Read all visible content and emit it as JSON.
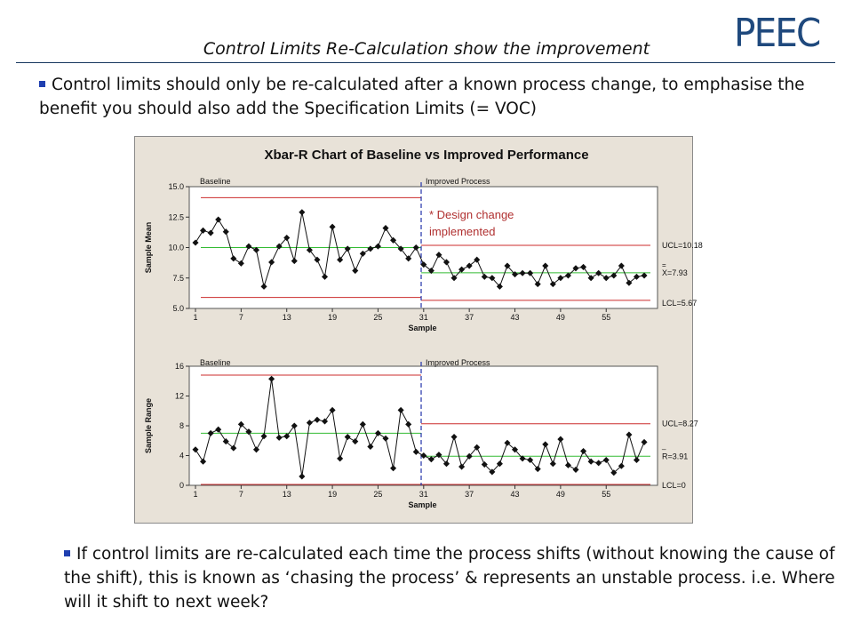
{
  "slide": {
    "title": "Control Limits Re-Calculation show the improvement",
    "logo": "PEEC",
    "bullet1": "Control limits should only be re-calculated after a known process change, to emphasise the benefit you should also add the Specification Limits (= VOC)",
    "bullet2": "If control limits are re-calculated each time the process shifts (without knowing the cause of the shift), this is known as ‘chasing the process’ & represents an unstable process. i.e. Where will it shift to next week?"
  },
  "colors": {
    "limit": "#cc2b2b",
    "center": "#33bb33",
    "shift": "#2233aa",
    "annotation": "#b03030",
    "brand": "#1f497d"
  },
  "chart_data": [
    {
      "type": "line",
      "title": "Xbar-R Chart of Baseline vs Improved Performance",
      "xlabel": "Sample",
      "ylabel": "Sample Mean",
      "ylim": [
        5.0,
        15.0
      ],
      "yticks": [
        "15.0",
        "12.5",
        "10.0",
        "7.5",
        "5.0"
      ],
      "xticks": [
        "1",
        "7",
        "13",
        "19",
        "25",
        "31",
        "37",
        "43",
        "49",
        "55"
      ],
      "stage_labels": [
        "Baseline",
        "Improved Process"
      ],
      "annotation": [
        "* Design change",
        "implemented"
      ],
      "limit_labels": {
        "ucl": "UCL=10.18",
        "center_bar": "=",
        "center": "X=7.93",
        "lcl": "LCL=5.67"
      },
      "limits": {
        "baseline": {
          "ucl": 14.1,
          "center": 10.0,
          "lcl": 5.9
        },
        "improved": {
          "ucl": 10.18,
          "center": 7.93,
          "lcl": 5.67
        }
      },
      "x": [
        1,
        2,
        3,
        4,
        5,
        6,
        7,
        8,
        9,
        10,
        11,
        12,
        13,
        14,
        15,
        16,
        17,
        18,
        19,
        20,
        21,
        22,
        23,
        24,
        25,
        26,
        27,
        28,
        29,
        30,
        31,
        32,
        33,
        34,
        35,
        36,
        37,
        38,
        39,
        40,
        41,
        42,
        43,
        44,
        45,
        46,
        47,
        48,
        49,
        50,
        51,
        52,
        53,
        54,
        55,
        56,
        57,
        58,
        59,
        60
      ],
      "values": [
        10.4,
        11.4,
        11.2,
        12.3,
        11.3,
        9.1,
        8.7,
        10.1,
        9.8,
        6.8,
        8.8,
        10.1,
        10.8,
        8.9,
        12.9,
        9.8,
        9.0,
        7.6,
        11.7,
        9.0,
        9.9,
        8.1,
        9.5,
        9.9,
        10.1,
        11.6,
        10.6,
        9.9,
        9.1,
        10.0,
        8.6,
        8.1,
        9.4,
        8.8,
        7.5,
        8.2,
        8.5,
        9.0,
        7.6,
        7.5,
        6.8,
        8.5,
        7.8,
        7.9,
        7.9,
        7.0,
        8.5,
        7.0,
        7.5,
        7.7,
        8.3,
        8.4,
        7.5,
        7.9,
        7.5,
        7.7,
        8.5,
        7.1,
        7.6,
        7.7
      ]
    },
    {
      "type": "line",
      "xlabel": "Sample",
      "ylabel": "Sample Range",
      "ylim": [
        0,
        16
      ],
      "yticks": [
        "16",
        "12",
        "8",
        "4",
        "0"
      ],
      "xticks": [
        "1",
        "7",
        "13",
        "19",
        "25",
        "31",
        "37",
        "43",
        "49",
        "55"
      ],
      "stage_labels": [
        "Baseline",
        "Improved Process"
      ],
      "limit_labels": {
        "ucl": "UCL=8.27",
        "center_bar": "_",
        "center": "R=3.91",
        "lcl": "LCL=0"
      },
      "limits": {
        "baseline": {
          "ucl": 14.8,
          "center": 7.0,
          "lcl": 0
        },
        "improved": {
          "ucl": 8.27,
          "center": 3.91,
          "lcl": 0
        }
      },
      "x": [
        1,
        2,
        3,
        4,
        5,
        6,
        7,
        8,
        9,
        10,
        11,
        12,
        13,
        14,
        15,
        16,
        17,
        18,
        19,
        20,
        21,
        22,
        23,
        24,
        25,
        26,
        27,
        28,
        29,
        30,
        31,
        32,
        33,
        34,
        35,
        36,
        37,
        38,
        39,
        40,
        41,
        42,
        43,
        44,
        45,
        46,
        47,
        48,
        49,
        50,
        51,
        52,
        53,
        54,
        55,
        56,
        57,
        58,
        59,
        60
      ],
      "values": [
        4.8,
        3.2,
        7.0,
        7.5,
        5.9,
        5.0,
        8.2,
        7.2,
        4.8,
        6.6,
        14.3,
        6.4,
        6.6,
        8.0,
        1.2,
        8.4,
        8.8,
        8.6,
        10.1,
        3.6,
        6.5,
        5.9,
        8.2,
        5.2,
        7.0,
        6.3,
        2.3,
        10.1,
        8.2,
        4.5,
        4.0,
        3.5,
        4.1,
        2.9,
        6.5,
        2.5,
        3.9,
        5.1,
        2.8,
        1.8,
        2.9,
        5.7,
        4.8,
        3.6,
        3.4,
        2.2,
        5.5,
        2.9,
        6.2,
        2.7,
        2.1,
        4.6,
        3.2,
        3.0,
        3.4,
        1.7,
        2.6,
        6.8,
        3.4,
        5.8
      ]
    }
  ]
}
